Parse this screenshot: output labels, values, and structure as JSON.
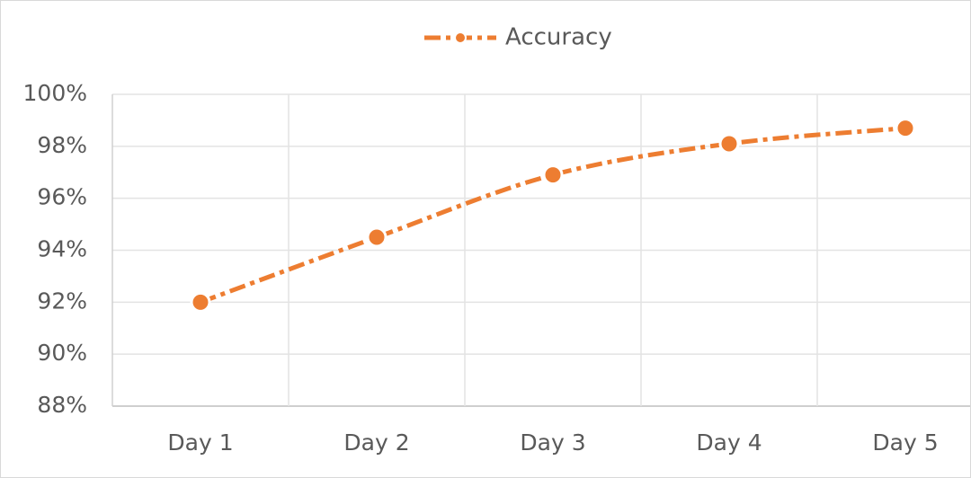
{
  "chart_data": {
    "type": "line",
    "categories": [
      "Day 1",
      "Day 2",
      "Day 3",
      "Day 4",
      "Day 5"
    ],
    "series": [
      {
        "name": "Accuracy",
        "color": "#ED7D31",
        "values": [
          92.0,
          94.5,
          96.9,
          98.1,
          98.7
        ]
      }
    ],
    "ylim": [
      88,
      100
    ],
    "yticks": [
      {
        "value": 88,
        "label": "88%"
      },
      {
        "value": 90,
        "label": "90%"
      },
      {
        "value": 92,
        "label": "92%"
      },
      {
        "value": 94,
        "label": "94%"
      },
      {
        "value": 96,
        "label": "96%"
      },
      {
        "value": 98,
        "label": "98%"
      },
      {
        "value": 100,
        "label": "100%"
      }
    ],
    "grid": true,
    "smooth": true,
    "legend": "top"
  }
}
